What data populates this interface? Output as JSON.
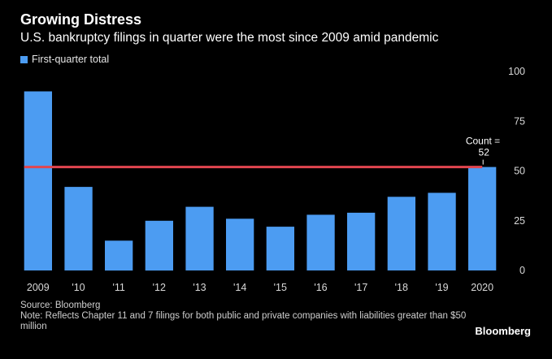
{
  "header": {
    "title": "Growing Distress",
    "subtitle": "U.S. bankruptcy filings in quarter were the most since 2009 amid pandemic"
  },
  "legend": {
    "label": "First-quarter total",
    "color": "#4c9cf2"
  },
  "chart_data": {
    "type": "bar",
    "title": "Growing Distress",
    "subtitle": "U.S. bankruptcy filings in quarter were the most since 2009 amid pandemic",
    "categories": [
      "2009",
      "'10",
      "'11",
      "'12",
      "'13",
      "'14",
      "'15",
      "'16",
      "'17",
      "'18",
      "'19",
      "2020"
    ],
    "series": [
      {
        "name": "First-quarter total",
        "values": [
          90,
          42,
          15,
          25,
          32,
          26,
          22,
          28,
          29,
          37,
          39,
          52
        ],
        "color": "#4c9cf2"
      }
    ],
    "ylim": [
      0,
      100
    ],
    "yticks": [
      0,
      25,
      50,
      75,
      100
    ],
    "y_axis_position": "right",
    "grid": false,
    "reference_line": {
      "value": 52,
      "color": "#e2454f",
      "annotation_line1": "Count =",
      "annotation_line2": "52"
    },
    "legend_position": "top-left",
    "xlabel": "",
    "ylabel": ""
  },
  "footer": {
    "source": "Source: Bloomberg",
    "note": "Note: Reflects Chapter 11 and 7 filings for both public and private companies with liabilities greater than $50 million",
    "brand": "Bloomberg"
  },
  "colors": {
    "background": "#000000",
    "bar": "#4c9cf2",
    "reference_line": "#e2454f",
    "text": "#ffffff"
  }
}
